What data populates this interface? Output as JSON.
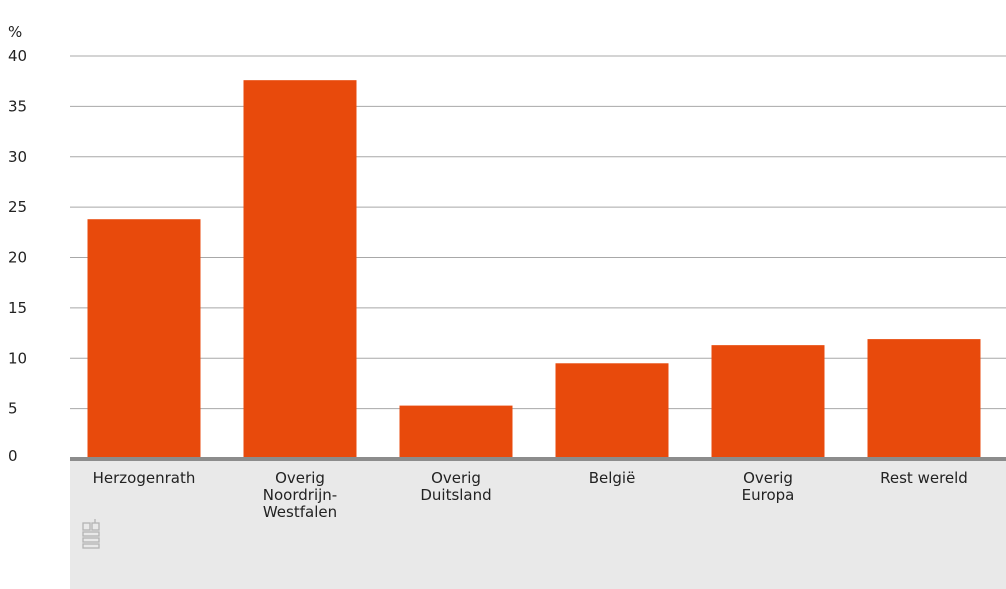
{
  "chart_data": {
    "type": "bar",
    "unit_label": "%",
    "categories": [
      [
        "Herzogenrath"
      ],
      [
        "Overig",
        "Noordrijn-",
        "Westfalen"
      ],
      [
        "Overig",
        "Duitsland"
      ],
      [
        "België"
      ],
      [
        "Overig",
        "Europa"
      ],
      [
        "Rest wereld"
      ]
    ],
    "series": [
      {
        "values": [
          23.8,
          37.6,
          5.3,
          9.5,
          11.3,
          11.9
        ]
      }
    ],
    "ylim": [
      0,
      40
    ],
    "yticks": [
      0,
      5,
      10,
      15,
      20,
      25,
      30,
      35,
      40
    ],
    "grid": true,
    "bar_color": "#e84a0c",
    "band_color": "#e9e9e9",
    "gridline_color": "#a8a8a8",
    "axis_color": "#8c8c8c",
    "logo_icon": "cbs-logo-icon"
  }
}
